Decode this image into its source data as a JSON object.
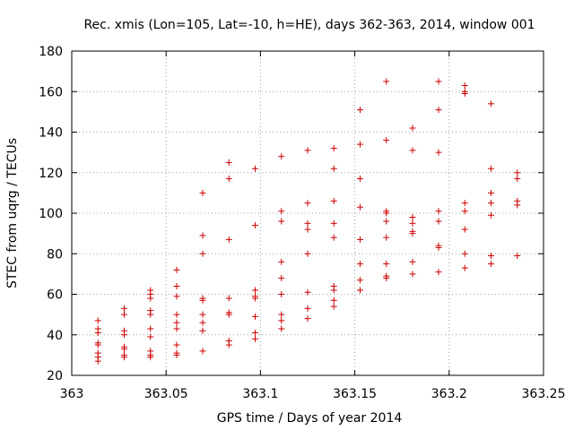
{
  "chart_data": {
    "type": "scatter",
    "title": "Rec. xmis (Lon=105, Lat=-10, h=HE), days 362-363, 2014, window 001",
    "xlabel": "GPS time / Days of year 2014",
    "ylabel": "STEC from uqrg / TECUs",
    "xlim": [
      363,
      363.25
    ],
    "ylim": [
      20,
      180
    ],
    "xticks": [
      "363",
      "363.05",
      "363.1",
      "363.15",
      "363.2",
      "363.25"
    ],
    "yticks": [
      "20",
      "40",
      "60",
      "80",
      "100",
      "120",
      "140",
      "160",
      "180"
    ],
    "grid": true,
    "marker": "plus",
    "series": [
      {
        "name": "STEC",
        "color": "#cc0000",
        "points": [
          [
            363.0139,
            47
          ],
          [
            363.0139,
            43
          ],
          [
            363.0139,
            41
          ],
          [
            363.0139,
            36
          ],
          [
            363.0139,
            35
          ],
          [
            363.0139,
            31
          ],
          [
            363.0139,
            29
          ],
          [
            363.0139,
            27
          ],
          [
            363.0278,
            53
          ],
          [
            363.0278,
            50
          ],
          [
            363.0278,
            42
          ],
          [
            363.0278,
            40
          ],
          [
            363.0278,
            34
          ],
          [
            363.0278,
            33
          ],
          [
            363.0278,
            30
          ],
          [
            363.0278,
            29
          ],
          [
            363.0417,
            62
          ],
          [
            363.0417,
            60
          ],
          [
            363.0417,
            58
          ],
          [
            363.0417,
            52
          ],
          [
            363.0417,
            50
          ],
          [
            363.0417,
            43
          ],
          [
            363.0417,
            39
          ],
          [
            363.0417,
            32
          ],
          [
            363.0417,
            30
          ],
          [
            363.0417,
            29
          ],
          [
            363.0556,
            72
          ],
          [
            363.0556,
            64
          ],
          [
            363.0556,
            59
          ],
          [
            363.0556,
            50
          ],
          [
            363.0556,
            46
          ],
          [
            363.0556,
            43
          ],
          [
            363.0556,
            35
          ],
          [
            363.0556,
            31
          ],
          [
            363.0556,
            30
          ],
          [
            363.0694,
            110
          ],
          [
            363.0694,
            89
          ],
          [
            363.0694,
            80
          ],
          [
            363.0694,
            58
          ],
          [
            363.0694,
            57
          ],
          [
            363.0694,
            50
          ],
          [
            363.0694,
            46
          ],
          [
            363.0694,
            42
          ],
          [
            363.0694,
            32
          ],
          [
            363.0833,
            125
          ],
          [
            363.0833,
            117
          ],
          [
            363.0833,
            87
          ],
          [
            363.0833,
            58
          ],
          [
            363.0833,
            51
          ],
          [
            363.0833,
            50
          ],
          [
            363.0833,
            37
          ],
          [
            363.0833,
            35
          ],
          [
            363.0972,
            122
          ],
          [
            363.0972,
            94
          ],
          [
            363.0972,
            62
          ],
          [
            363.0972,
            59
          ],
          [
            363.0972,
            58
          ],
          [
            363.0972,
            49
          ],
          [
            363.0972,
            41
          ],
          [
            363.0972,
            38
          ],
          [
            363.1111,
            128
          ],
          [
            363.1111,
            101
          ],
          [
            363.1111,
            96
          ],
          [
            363.1111,
            76
          ],
          [
            363.1111,
            68
          ],
          [
            363.1111,
            60
          ],
          [
            363.1111,
            50
          ],
          [
            363.1111,
            47
          ],
          [
            363.1111,
            43
          ],
          [
            363.125,
            131
          ],
          [
            363.125,
            105
          ],
          [
            363.125,
            95
          ],
          [
            363.125,
            92
          ],
          [
            363.125,
            80
          ],
          [
            363.125,
            61
          ],
          [
            363.125,
            53
          ],
          [
            363.125,
            48
          ],
          [
            363.1389,
            132
          ],
          [
            363.1389,
            122
          ],
          [
            363.1389,
            106
          ],
          [
            363.1389,
            95
          ],
          [
            363.1389,
            88
          ],
          [
            363.1389,
            64
          ],
          [
            363.1389,
            62
          ],
          [
            363.1389,
            57
          ],
          [
            363.1389,
            54
          ],
          [
            363.1528,
            151
          ],
          [
            363.1528,
            134
          ],
          [
            363.1528,
            117
          ],
          [
            363.1528,
            103
          ],
          [
            363.1528,
            87
          ],
          [
            363.1528,
            75
          ],
          [
            363.1528,
            67
          ],
          [
            363.1528,
            62
          ],
          [
            363.1667,
            165
          ],
          [
            363.1667,
            136
          ],
          [
            363.1667,
            101
          ],
          [
            363.1667,
            100
          ],
          [
            363.1667,
            96
          ],
          [
            363.1667,
            88
          ],
          [
            363.1667,
            75
          ],
          [
            363.1667,
            69
          ],
          [
            363.1667,
            68
          ],
          [
            363.1806,
            142
          ],
          [
            363.1806,
            131
          ],
          [
            363.1806,
            98
          ],
          [
            363.1806,
            95
          ],
          [
            363.1806,
            91
          ],
          [
            363.1806,
            90
          ],
          [
            363.1806,
            76
          ],
          [
            363.1806,
            70
          ],
          [
            363.1944,
            165
          ],
          [
            363.1944,
            151
          ],
          [
            363.1944,
            130
          ],
          [
            363.1944,
            101
          ],
          [
            363.1944,
            96
          ],
          [
            363.1944,
            84
          ],
          [
            363.1944,
            83
          ],
          [
            363.1944,
            71
          ],
          [
            363.2083,
            163
          ],
          [
            363.2083,
            160
          ],
          [
            363.2083,
            159
          ],
          [
            363.2083,
            105
          ],
          [
            363.2083,
            101
          ],
          [
            363.2083,
            92
          ],
          [
            363.2083,
            80
          ],
          [
            363.2083,
            73
          ],
          [
            363.2222,
            154
          ],
          [
            363.2222,
            122
          ],
          [
            363.2222,
            110
          ],
          [
            363.2222,
            105
          ],
          [
            363.2222,
            99
          ],
          [
            363.2222,
            79
          ],
          [
            363.2222,
            75
          ],
          [
            363.2361,
            120
          ],
          [
            363.2361,
            117
          ],
          [
            363.2361,
            106
          ],
          [
            363.2361,
            104
          ],
          [
            363.2361,
            79
          ]
        ]
      }
    ]
  }
}
